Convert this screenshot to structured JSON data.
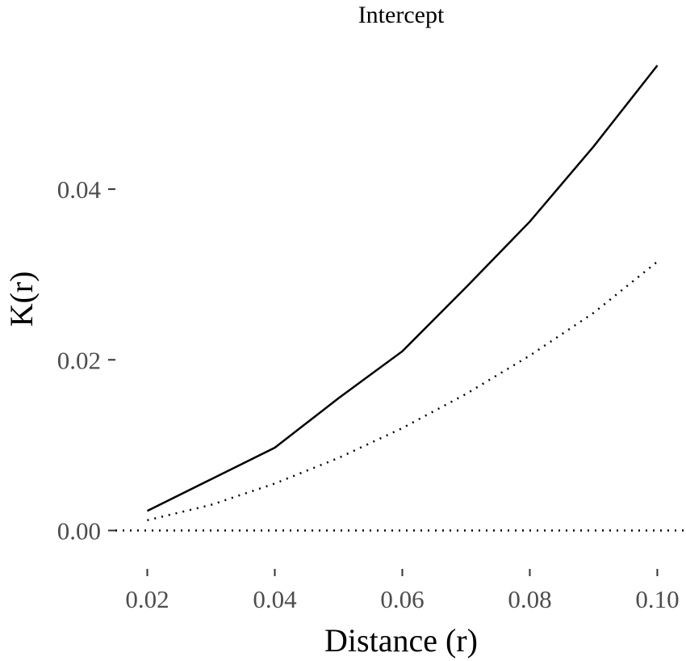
{
  "chart_data": {
    "type": "line",
    "title": "Intercept",
    "xlabel": "Distance (r)",
    "ylabel": "K(r)",
    "xlim": [
      0.015,
      0.1045
    ],
    "ylim": [
      -0.0045,
      0.058
    ],
    "x_ticks": [
      0.02,
      0.04,
      0.06,
      0.08,
      0.1
    ],
    "x_tick_labels": [
      "0.02",
      "0.04",
      "0.06",
      "0.08",
      "0.10"
    ],
    "y_ticks": [
      0.0,
      0.02,
      0.04
    ],
    "y_tick_labels": [
      "0.00",
      "0.02",
      "0.04"
    ],
    "grid": false,
    "legend": "none",
    "series": [
      {
        "style": "solid",
        "x": [
          0.02,
          0.03,
          0.04,
          0.05,
          0.06,
          0.07,
          0.08,
          0.09,
          0.1
        ],
        "values": [
          0.0023,
          0.006,
          0.0097,
          0.0155,
          0.021,
          0.0285,
          0.0362,
          0.045,
          0.0545
        ]
      },
      {
        "style": "dotted",
        "x": [
          0.02,
          0.03,
          0.04,
          0.05,
          0.06,
          0.07,
          0.08,
          0.09,
          0.1
        ],
        "values": [
          0.0012,
          0.003,
          0.0055,
          0.0085,
          0.012,
          0.016,
          0.0205,
          0.0255,
          0.0315
        ]
      }
    ],
    "reference_line": {
      "y": 0.0,
      "style": "dotted"
    }
  }
}
